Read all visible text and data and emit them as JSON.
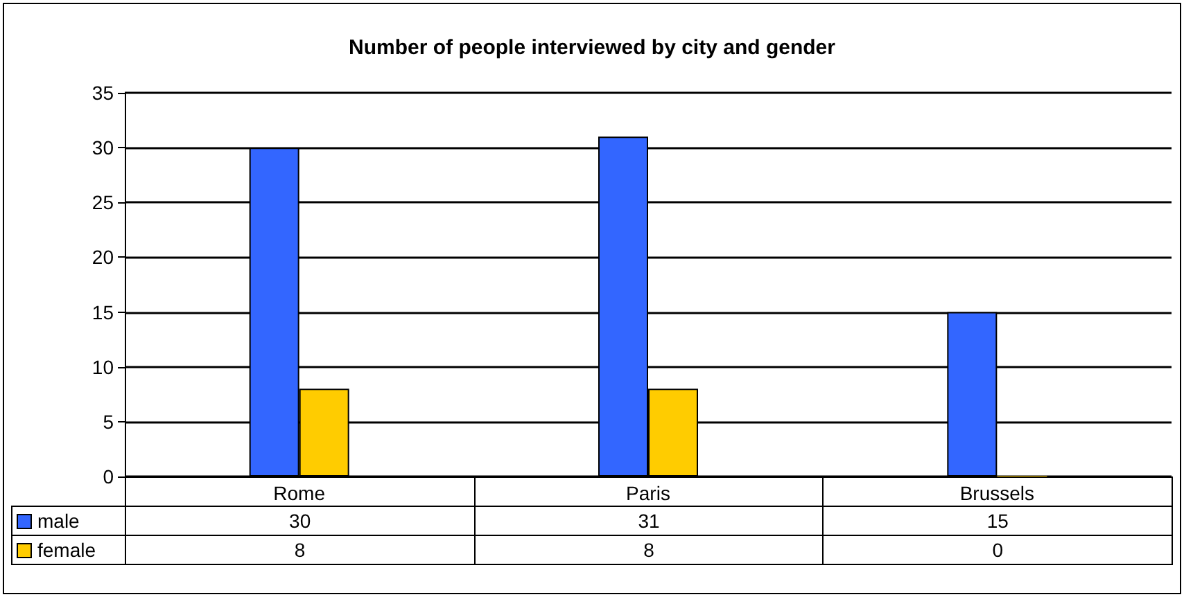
{
  "chart_data": {
    "type": "bar",
    "title": "Number of people interviewed by city and gender",
    "categories": [
      "Rome",
      "Paris",
      "Brussels"
    ],
    "series": [
      {
        "name": "male",
        "color": "#3366ff",
        "values": [
          30,
          31,
          15
        ]
      },
      {
        "name": "female",
        "color": "#ffcc00",
        "values": [
          8,
          8,
          0
        ]
      }
    ],
    "ylim": [
      0,
      35
    ],
    "yticks": [
      0,
      5,
      10,
      15,
      20,
      25,
      30,
      35
    ],
    "grid": "y",
    "legend": "bottom left",
    "data_labels": true
  }
}
